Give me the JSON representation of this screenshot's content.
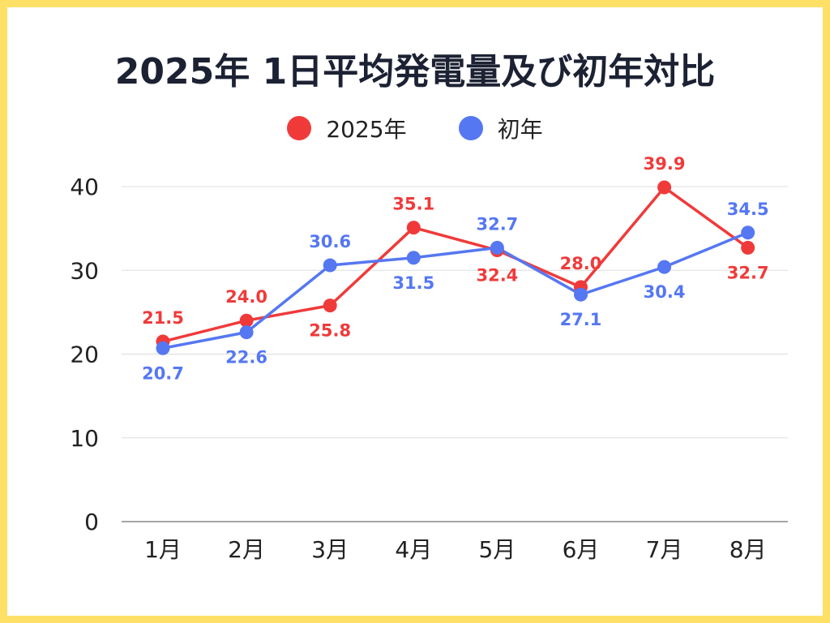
{
  "chart_data": {
    "type": "line",
    "title": "2025年 1日平均発電量及び初年対比",
    "categories": [
      "1月",
      "2月",
      "3月",
      "4月",
      "5月",
      "6月",
      "7月",
      "8月"
    ],
    "series": [
      {
        "name": "2025年",
        "color": "#f03a3a",
        "values": [
          21.5,
          24.0,
          25.8,
          35.1,
          32.4,
          28.0,
          39.9,
          32.7
        ],
        "labels": [
          "21.5",
          "24.0",
          "25.8",
          "35.1",
          "32.4",
          "28.0",
          "39.9",
          "32.7"
        ],
        "label_positions": [
          "above",
          "above",
          "below",
          "above",
          "below",
          "above",
          "above",
          "below"
        ]
      },
      {
        "name": "初年",
        "color": "#5577f2",
        "values": [
          20.7,
          22.6,
          30.6,
          31.5,
          32.7,
          27.1,
          30.4,
          34.5
        ],
        "labels": [
          "20.7",
          "22.6",
          "30.6",
          "31.5",
          "32.7",
          "27.1",
          "30.4",
          "34.5"
        ],
        "label_positions": [
          "below",
          "below",
          "above",
          "below",
          "above",
          "below",
          "below",
          "above"
        ]
      }
    ],
    "ylim": [
      0,
      40
    ],
    "yticks": [
      "0",
      "10",
      "20",
      "30",
      "40"
    ],
    "grid": true,
    "legend_position": "top-center",
    "xlabel": "",
    "ylabel": ""
  }
}
